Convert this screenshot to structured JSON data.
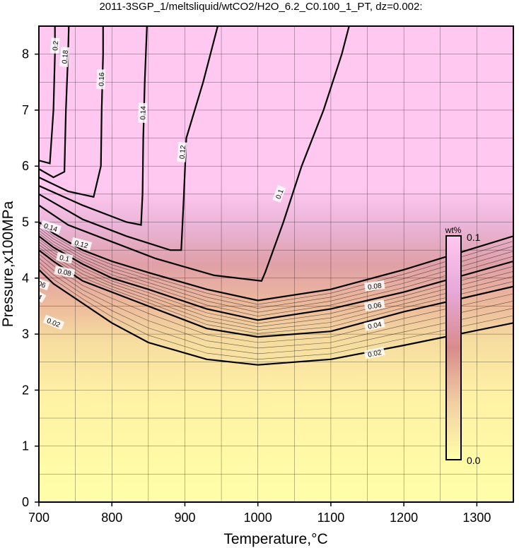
{
  "chart_data": {
    "type": "heatmap",
    "title": "2011-3SGP_1/meltsliquid/wtCO2/H2O_6.2_C0.100_1_PT, dz=0.002:",
    "xlabel": "Temperature,°C",
    "ylabel": "Pressure,x100MPa",
    "xlim": [
      700,
      1350
    ],
    "ylim": [
      0,
      8.5
    ],
    "x_ticks": [
      "700",
      "800",
      "900",
      "1000",
      "1100",
      "1200",
      "1300"
    ],
    "y_ticks": [
      "0",
      "1",
      "2",
      "3",
      "4",
      "5",
      "6",
      "7",
      "8"
    ],
    "grid": true,
    "colorbar": {
      "title": "wt%",
      "min_label": "0.0",
      "max_label": "0.1",
      "placement": "right-inside",
      "colors": [
        "#ffffa8",
        "#f0c8a0",
        "#d88888",
        "#f0b8e8",
        "#ffc8f0"
      ]
    },
    "background_color": "#ffc8f0",
    "contours": [
      {
        "level": "0.02",
        "points": [
          [
            700,
            4.15
          ],
          [
            720,
            3.9
          ],
          [
            760,
            3.55
          ],
          [
            800,
            3.2
          ],
          [
            850,
            2.85
          ],
          [
            930,
            2.55
          ],
          [
            1000,
            2.45
          ],
          [
            1100,
            2.55
          ],
          [
            1200,
            2.8
          ],
          [
            1350,
            3.2
          ]
        ]
      },
      {
        "level": "0.04",
        "points": [
          [
            700,
            4.5
          ],
          [
            720,
            4.3
          ],
          [
            760,
            3.95
          ],
          [
            800,
            3.75
          ],
          [
            850,
            3.5
          ],
          [
            930,
            3.1
          ],
          [
            1000,
            2.95
          ],
          [
            1100,
            3.05
          ],
          [
            1200,
            3.4
          ],
          [
            1350,
            3.85
          ]
        ]
      },
      {
        "level": "0.06",
        "points": [
          [
            700,
            4.75
          ],
          [
            720,
            4.55
          ],
          [
            760,
            4.25
          ],
          [
            800,
            4.0
          ],
          [
            850,
            3.8
          ],
          [
            930,
            3.45
          ],
          [
            1000,
            3.25
          ],
          [
            1100,
            3.45
          ],
          [
            1200,
            3.75
          ],
          [
            1350,
            4.3
          ]
        ]
      },
      {
        "level": "0.08",
        "points": [
          [
            700,
            5.0
          ],
          [
            720,
            4.8
          ],
          [
            760,
            4.5
          ],
          [
            800,
            4.3
          ],
          [
            850,
            4.1
          ],
          [
            930,
            3.8
          ],
          [
            1000,
            3.6
          ],
          [
            1100,
            3.8
          ],
          [
            1200,
            4.15
          ],
          [
            1350,
            4.75
          ]
        ]
      },
      {
        "level": "0.1",
        "points": [
          [
            700,
            5.3
          ],
          [
            740,
            4.95
          ],
          [
            800,
            4.65
          ],
          [
            860,
            4.35
          ],
          [
            940,
            4.05
          ],
          [
            1005,
            3.95
          ],
          [
            1010,
            4.1
          ],
          [
            1035,
            5.0
          ],
          [
            1060,
            6.0
          ],
          [
            1090,
            7.0
          ],
          [
            1115,
            8.0
          ],
          [
            1125,
            8.5
          ]
        ]
      },
      {
        "level": "0.12",
        "points": [
          [
            700,
            5.5
          ],
          [
            760,
            5.05
          ],
          [
            820,
            4.75
          ],
          [
            880,
            4.5
          ],
          [
            895,
            4.5
          ],
          [
            898,
            5.3
          ],
          [
            902,
            6.5
          ],
          [
            925,
            7.5
          ],
          [
            945,
            8.5
          ]
        ]
      },
      {
        "level": "0.14",
        "points": [
          [
            700,
            5.65
          ],
          [
            760,
            5.3
          ],
          [
            820,
            5.0
          ],
          [
            840,
            4.95
          ],
          [
            842,
            5.5
          ],
          [
            843,
            6.5
          ],
          [
            845,
            7.5
          ],
          [
            848,
            8.5
          ]
        ]
      },
      {
        "level": "0.16",
        "points": [
          [
            700,
            5.8
          ],
          [
            740,
            5.55
          ],
          [
            775,
            5.45
          ],
          [
            785,
            6.0
          ],
          [
            786,
            7.0
          ],
          [
            788,
            8.0
          ],
          [
            788,
            8.5
          ]
        ]
      },
      {
        "level": "0.18",
        "points": [
          [
            700,
            5.95
          ],
          [
            720,
            5.8
          ],
          [
            735,
            5.9
          ],
          [
            737,
            7.0
          ],
          [
            740,
            8.0
          ],
          [
            741,
            8.5
          ]
        ]
      },
      {
        "level": "0.2",
        "points": [
          [
            700,
            6.1
          ],
          [
            715,
            6.05
          ],
          [
            720,
            7.0
          ],
          [
            722,
            8.0
          ],
          [
            722,
            8.5
          ]
        ]
      }
    ],
    "contour_labels": [
      {
        "text": "0.02",
        "x": 720,
        "y": 3.2,
        "angle": 22
      },
      {
        "text": "0.02",
        "x": 1160,
        "y": 2.65,
        "angle": -12
      },
      {
        "text": "0.04",
        "x": 695,
        "y": 3.7,
        "angle": 30
      },
      {
        "text": "0.04",
        "x": 1160,
        "y": 3.15,
        "angle": -12
      },
      {
        "text": "0.06",
        "x": 700,
        "y": 3.9,
        "angle": 20
      },
      {
        "text": "0.06",
        "x": 1160,
        "y": 3.5,
        "angle": -10
      },
      {
        "text": "0.08",
        "x": 735,
        "y": 4.1,
        "angle": 12
      },
      {
        "text": "0.08",
        "x": 1160,
        "y": 3.85,
        "angle": -8
      },
      {
        "text": "0.1",
        "x": 735,
        "y": 4.35,
        "angle": 12
      },
      {
        "text": "0.1",
        "x": 1030,
        "y": 5.5,
        "angle": -70
      },
      {
        "text": "0.12",
        "x": 758,
        "y": 4.6,
        "angle": 15
      },
      {
        "text": "0.12",
        "x": 897,
        "y": 6.25,
        "angle": -85
      },
      {
        "text": "0.14",
        "x": 716,
        "y": 4.9,
        "angle": 18
      },
      {
        "text": "0.14",
        "x": 843,
        "y": 6.95,
        "angle": -88
      },
      {
        "text": "0.16",
        "x": 690,
        "y": 5.45,
        "angle": -85
      },
      {
        "text": "0.16",
        "x": 786,
        "y": 7.55,
        "angle": -88
      },
      {
        "text": "0.18",
        "x": 673,
        "y": 6.25,
        "angle": -85
      },
      {
        "text": "0.18",
        "x": 736,
        "y": 7.95,
        "angle": -85
      },
      {
        "text": "0.2",
        "x": 655,
        "y": 6.75,
        "angle": -85
      },
      {
        "text": "0.2",
        "x": 723,
        "y": 8.15,
        "angle": -85
      }
    ]
  }
}
